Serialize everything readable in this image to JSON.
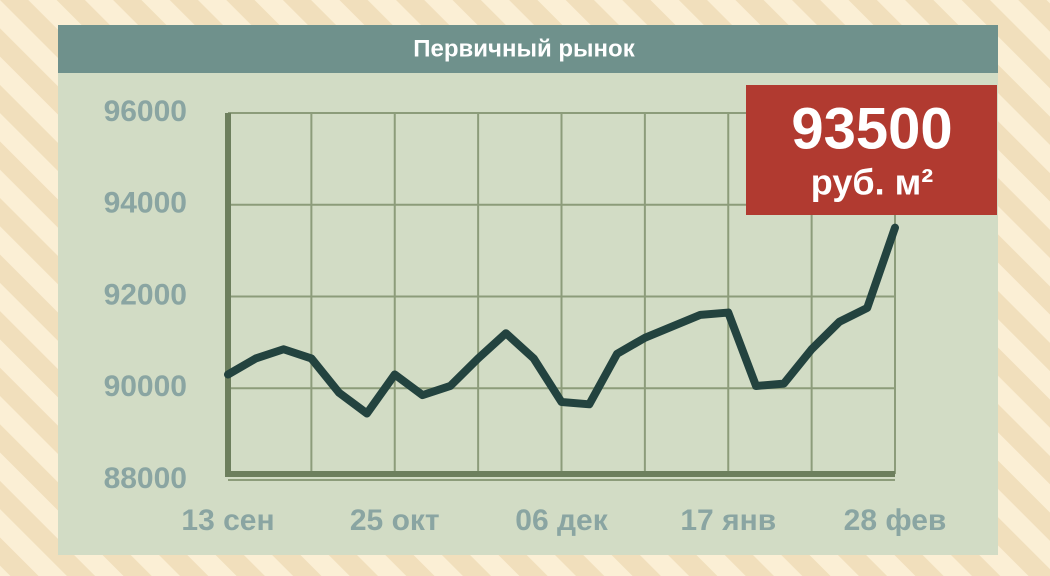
{
  "chart_data": {
    "type": "line",
    "title": "Первичный рынок",
    "categories": [
      "13 сен",
      null,
      null,
      null,
      null,
      null,
      "25 окт",
      null,
      null,
      null,
      null,
      null,
      "06 дек",
      null,
      null,
      null,
      null,
      null,
      "17 янв",
      null,
      null,
      null,
      null,
      null,
      "28 фев"
    ],
    "series": [
      {
        "color": "#23433f",
        "values": [
          90300,
          90650,
          90850,
          90650,
          89900,
          89450,
          90300,
          89850,
          90050,
          90650,
          91200,
          90650,
          89700,
          89650,
          90750,
          91100,
          91350,
          91600,
          91650,
          90050,
          90100,
          90850,
          91450,
          91750,
          93500
        ]
      }
    ],
    "ylim": [
      88000,
      96000
    ],
    "yticks": [
      88000,
      90000,
      92000,
      94000,
      96000
    ],
    "grid": true,
    "badge": {
      "value": "93500",
      "unit": "руб. м²"
    }
  }
}
